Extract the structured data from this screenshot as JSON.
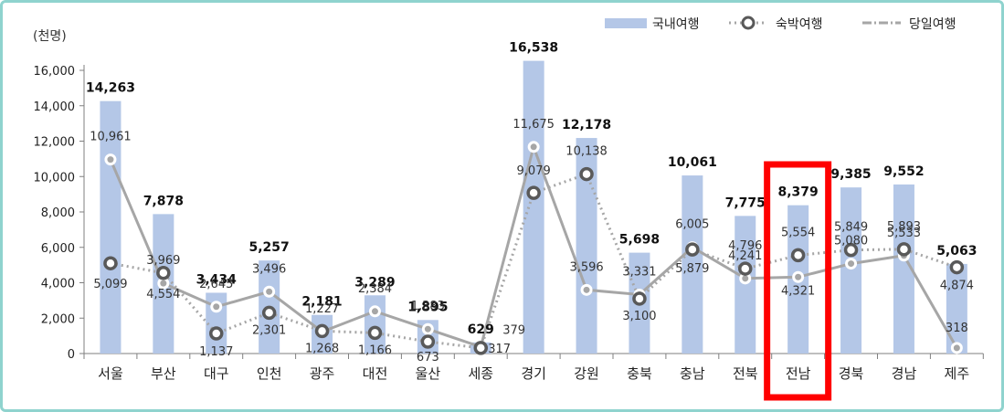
{
  "chart_data": {
    "type": "bar",
    "unit_label": "(천명)",
    "categories": [
      "서울",
      "부산",
      "대구",
      "인천",
      "광주",
      "대전",
      "울산",
      "세종",
      "경기",
      "강원",
      "충북",
      "충남",
      "전북",
      "전남",
      "경북",
      "경남",
      "제주"
    ],
    "series": [
      {
        "name": "국내여행",
        "type": "bar",
        "color": "#b4c7e7",
        "values": [
          14263,
          7878,
          3434,
          5257,
          2181,
          3289,
          1895,
          629,
          16538,
          12178,
          5698,
          10061,
          7775,
          8379,
          9385,
          9552,
          5063
        ],
        "labels": [
          "14,263",
          "7,878",
          "3,434",
          "5,257",
          "2,181",
          "3,289",
          "1,895",
          "629",
          "16,538",
          "12,178",
          "5,698",
          "10,061",
          "7,775",
          "8,379",
          "9,385",
          "9,552",
          "5,063"
        ]
      },
      {
        "name": "숙박여행",
        "type": "line",
        "style": "dotted",
        "color": "#a6a6a6",
        "values": [
          5099,
          4554,
          1137,
          2301,
          1268,
          1166,
          673,
          317,
          9079,
          10138,
          3100,
          5879,
          4796,
          5554,
          5849,
          5893,
          4874
        ],
        "labels": [
          "5,099",
          "4,554",
          "1,137",
          "2,301",
          "1,268",
          "1,166",
          "673",
          "317",
          "9,079",
          "10,138",
          "3,100",
          "5,879",
          "4,796",
          "5,554",
          "5,849",
          "5,893",
          "4,874"
        ]
      },
      {
        "name": "당일여행",
        "type": "line",
        "style": "solid",
        "color": "#a6a6a6",
        "values": [
          10961,
          3969,
          2645,
          3496,
          1227,
          2384,
          1383,
          379,
          11675,
          3596,
          3331,
          6005,
          4241,
          4321,
          5080,
          5533,
          318
        ],
        "labels": [
          "10,961",
          "3,969",
          "2,645",
          "3,496",
          "1,227",
          "2,384",
          "1,383",
          "379",
          "11,675",
          "3,596",
          "3,331",
          "6,005",
          "4,241",
          "4,321",
          "5,080",
          "5,533",
          "318"
        ]
      }
    ],
    "y_ticks": [
      "0",
      "2,000",
      "4,000",
      "6,000",
      "8,000",
      "10,000",
      "12,000",
      "14,000",
      "16,000"
    ],
    "ylim": [
      0,
      16000
    ],
    "legend_position": "top-right",
    "highlight": {
      "category": "전남",
      "color": "#ff0000"
    }
  }
}
